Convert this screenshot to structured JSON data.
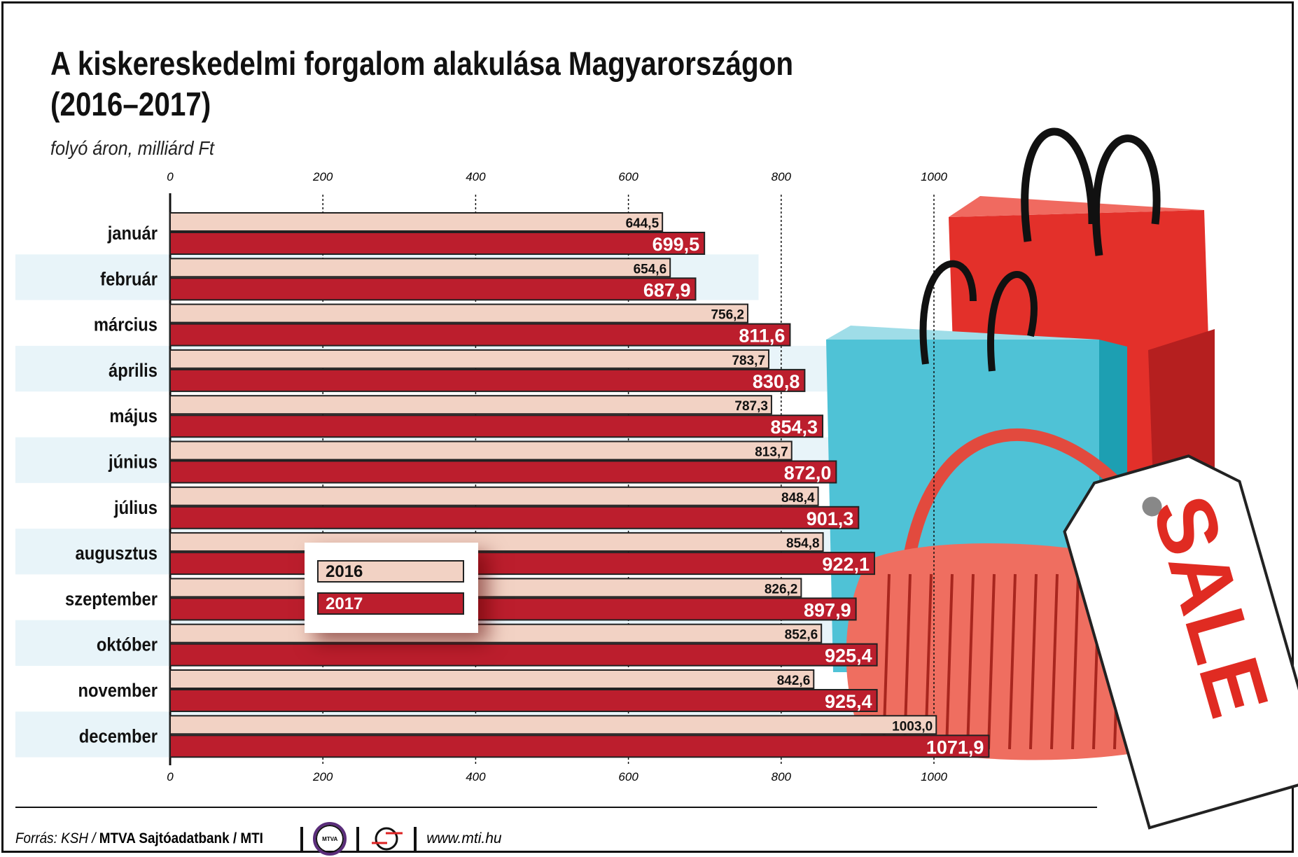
{
  "chart_data": {
    "type": "bar",
    "orientation": "horizontal",
    "title": "A kiskereskedelmi forgalom alakulása Magyarországon (2016–2017)",
    "title_lines": [
      "A kiskereskedelmi forgalom alakulása Magyarországon",
      "(2016–2017)"
    ],
    "subtitle": "folyó áron, milliárd Ft",
    "categories": [
      "január",
      "február",
      "március",
      "április",
      "május",
      "június",
      "július",
      "augusztus",
      "szeptember",
      "október",
      "november",
      "december"
    ],
    "series": [
      {
        "name": "2016",
        "color": "#f2d2c4",
        "values": [
          644.5,
          654.6,
          756.2,
          783.7,
          787.3,
          813.7,
          848.4,
          854.8,
          826.2,
          852.6,
          842.6,
          1003.0
        ],
        "labels": [
          "644,5",
          "654,6",
          "756,2",
          "783,7",
          "787,3",
          "813,7",
          "848,4",
          "854,8",
          "826,2",
          "852,6",
          "842,6",
          "1003,0"
        ]
      },
      {
        "name": "2017",
        "color": "#bc1e2d",
        "values": [
          699.5,
          687.9,
          811.6,
          830.8,
          854.3,
          872.0,
          901.3,
          922.1,
          897.9,
          925.4,
          925.4,
          1071.9
        ],
        "labels": [
          "699,5",
          "687,9",
          "811,6",
          "830,8",
          "854,3",
          "872,0",
          "901,3",
          "922,1",
          "897,9",
          "925,4",
          "925,4",
          "1071,9"
        ]
      }
    ],
    "xlim": [
      0,
      1100
    ],
    "xticks": [
      0,
      200,
      400,
      600,
      800,
      1000
    ],
    "grid": "dotted vertical",
    "legend": "bottom-left inside"
  },
  "illustration": {
    "sale_tag": "SALE"
  },
  "footer": {
    "source_prefix": "Forrás: KSH / ",
    "source_bold": "MTVA Sajtóadatbank / MTI",
    "logo1": "MTVA",
    "url": "www.mti.hu"
  }
}
